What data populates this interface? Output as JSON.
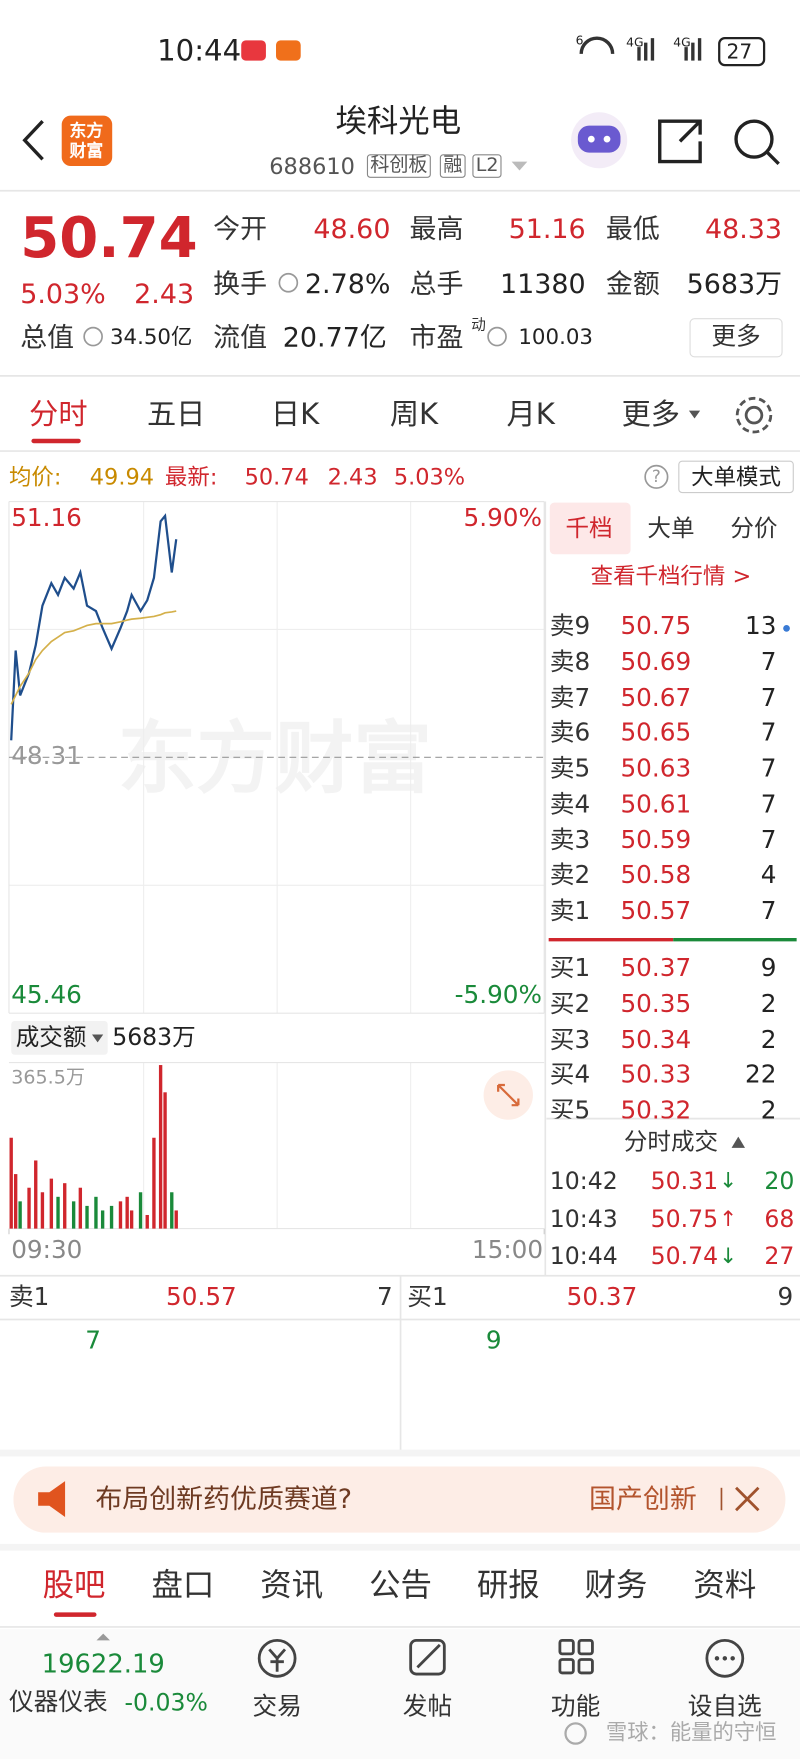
{
  "status_bar": {
    "time": "10:44",
    "battery": "27",
    "signal_labels": [
      "6",
      "4G",
      "4G"
    ]
  },
  "header": {
    "logo": [
      "东方",
      "财富"
    ],
    "name": "埃科光电",
    "code": "688610",
    "tags": [
      "科创板",
      "融",
      "L2"
    ]
  },
  "quote": {
    "price": "50.74",
    "change_pct": "5.03%",
    "change": "2.43",
    "stats": [
      [
        "今开",
        "48.60"
      ],
      [
        "最高",
        "51.16"
      ],
      [
        "最低",
        "48.33"
      ],
      [
        "换手",
        "2.78%"
      ],
      [
        "总手",
        "11380"
      ],
      [
        "金额",
        "5683万"
      ]
    ],
    "valuation": [
      [
        "总值",
        "34.50亿"
      ],
      [
        "流值",
        "20.77亿"
      ],
      [
        "市盈",
        "100.03"
      ]
    ],
    "pe_mark": "动",
    "more": "更多"
  },
  "tabs": [
    "分时",
    "五日",
    "日K",
    "周K",
    "月K",
    "更多"
  ],
  "info": {
    "avg_label": "均价:",
    "avg": "49.94",
    "last_label": "最新:",
    "last": "50.74",
    "change": "2.43",
    "change_pct": "5.03%",
    "help": "?",
    "mode": "大单模式"
  },
  "chart_data": {
    "type": "line",
    "watermark": "东方财富",
    "x": [
      1,
      3,
      5,
      9,
      12,
      15,
      19,
      22,
      25,
      29,
      32,
      35,
      39,
      42,
      46,
      50,
      53,
      55,
      59,
      62,
      65,
      68,
      70,
      73,
      75
    ],
    "xlim": [
      0,
      240
    ],
    "xticks": [
      {
        "value": 0,
        "label": "09:30"
      },
      {
        "value": 240,
        "label": "15:00"
      }
    ],
    "ylim": [
      45.46,
      51.16
    ],
    "yticks": [
      51.16,
      48.31,
      45.46
    ],
    "y2lim": [
      -5.9,
      5.9
    ],
    "y2ticks": [
      {
        "value": 5.9,
        "label": "5.90%"
      },
      {
        "value": -5.9,
        "label": "-5.90%"
      }
    ],
    "series": [
      {
        "color": "#1f4e8c",
        "values": [
          48.5,
          49.5,
          49.0,
          49.25,
          49.56,
          50.0,
          50.25,
          50.12,
          50.31,
          50.19,
          50.37,
          50.0,
          49.94,
          49.75,
          49.52,
          49.75,
          49.94,
          50.12,
          49.94,
          50.06,
          50.31,
          50.94,
          51.0,
          50.37,
          50.74
        ]
      },
      {
        "color": "#d4b04a",
        "values": [
          48.9,
          49.0,
          49.1,
          49.25,
          49.4,
          49.5,
          49.6,
          49.65,
          49.7,
          49.72,
          49.75,
          49.78,
          49.8,
          49.8,
          49.8,
          49.82,
          49.84,
          49.85,
          49.86,
          49.87,
          49.88,
          49.9,
          49.92,
          49.93,
          49.94
        ]
      }
    ],
    "volume": {
      "label": "成交额",
      "total": "5683万",
      "ylim": [
        0,
        365.5
      ],
      "yticks": [
        {
          "value": 365.5,
          "label": "365.5万"
        }
      ],
      "values": [
        200,
        120,
        60,
        90,
        150,
        80,
        110,
        70,
        100,
        60,
        90,
        50,
        70,
        40,
        50,
        60,
        70,
        40,
        80,
        30,
        200,
        360,
        300,
        80,
        40
      ],
      "colors": [
        "#d0262d",
        "#d0262d",
        "#1a8a3a",
        "#d0262d",
        "#d0262d",
        "#d0262d",
        "#d0262d",
        "#1a8a3a",
        "#d0262d",
        "#1a8a3a",
        "#d0262d",
        "#1a8a3a",
        "#1a8a3a",
        "#1a8a3a",
        "#1a8a3a",
        "#d0262d",
        "#d0262d",
        "#d0262d",
        "#1a8a3a",
        "#d0262d",
        "#d0262d",
        "#d0262d",
        "#d0262d",
        "#1a8a3a",
        "#d0262d"
      ]
    }
  },
  "order_book": {
    "tabs": [
      "千档",
      "大单",
      "分价"
    ],
    "link": "查看千档行情 >",
    "asks": [
      [
        "卖9",
        "50.75",
        "13"
      ],
      [
        "卖8",
        "50.69",
        "7"
      ],
      [
        "卖7",
        "50.67",
        "7"
      ],
      [
        "卖6",
        "50.65",
        "7"
      ],
      [
        "卖5",
        "50.63",
        "7"
      ],
      [
        "卖4",
        "50.61",
        "7"
      ],
      [
        "卖3",
        "50.59",
        "7"
      ],
      [
        "卖2",
        "50.58",
        "4"
      ],
      [
        "卖1",
        "50.57",
        "7"
      ]
    ],
    "bids": [
      [
        "买1",
        "50.37",
        "9"
      ],
      [
        "买2",
        "50.35",
        "2"
      ],
      [
        "买3",
        "50.34",
        "2"
      ],
      [
        "买4",
        "50.33",
        "22"
      ],
      [
        "买5",
        "50.32",
        "2"
      ]
    ]
  },
  "trades": {
    "title": "分时成交",
    "rows": [
      [
        "10:42",
        "50.31",
        "↓",
        "20"
      ],
      [
        "10:43",
        "50.75",
        "↑",
        "68"
      ],
      [
        "10:44",
        "50.74",
        "↓",
        "27"
      ]
    ]
  },
  "best": {
    "ask": [
      "卖1",
      "50.57",
      "7"
    ],
    "bid": [
      "买1",
      "50.37",
      "9"
    ],
    "ask_detail": "7",
    "bid_detail": "9"
  },
  "banner": {
    "text": "布局创新药优质赛道?",
    "tag": "国产创新"
  },
  "bottom_tabs": [
    "股吧",
    "盘口",
    "资讯",
    "公告",
    "研报",
    "财务",
    "资料"
  ],
  "nav": {
    "index_value": "19622.19",
    "index_name": "仪器仪表",
    "index_change": "-0.03%",
    "items": [
      "交易",
      "发帖",
      "功能",
      "设自选"
    ]
  },
  "watermark": "雪球：能量的守恒"
}
